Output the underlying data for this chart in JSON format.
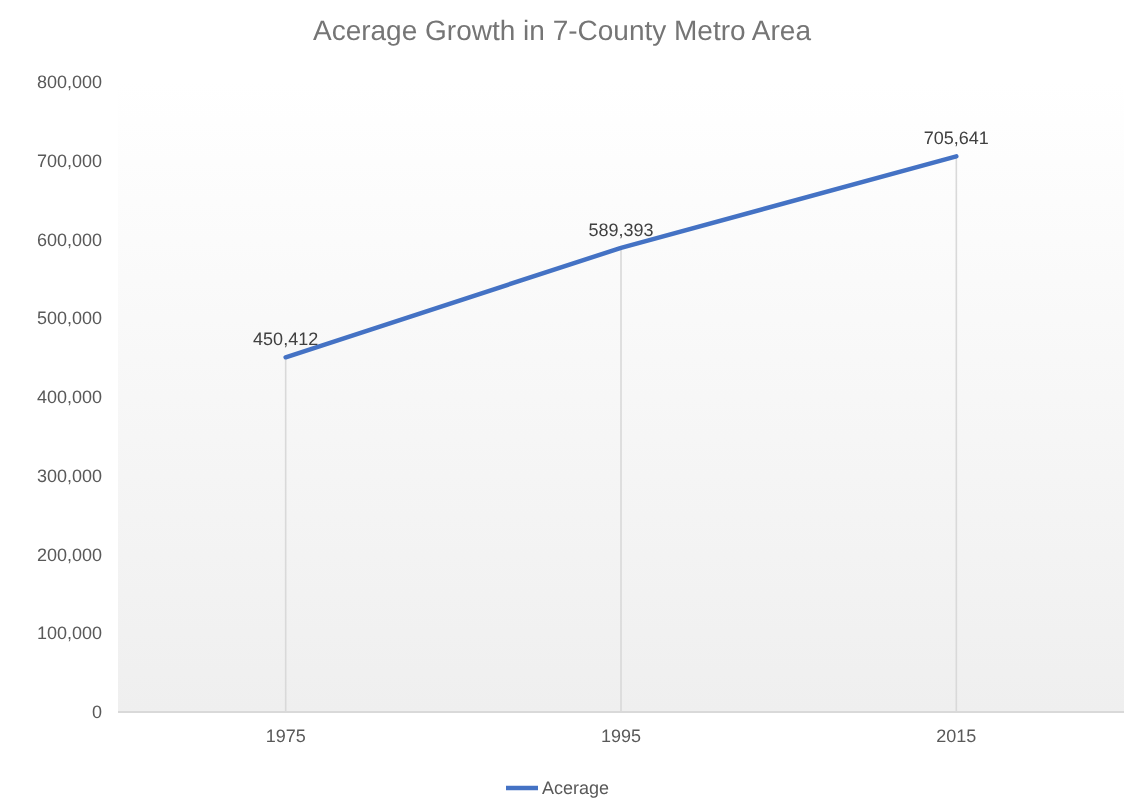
{
  "chart_data": {
    "type": "line",
    "title": "Acerage Growth in 7-County Metro Area",
    "categories": [
      "1975",
      "1995",
      "2015"
    ],
    "series": [
      {
        "name": "Acerage",
        "color": "#4472c4",
        "values": [
          450412,
          589393,
          705641
        ],
        "value_labels": [
          "450,412",
          "589,393",
          "705,641"
        ]
      }
    ],
    "ylim": [
      0,
      800000
    ],
    "yticks": [
      {
        "value": 0,
        "label": "0"
      },
      {
        "value": 100000,
        "label": "100,000"
      },
      {
        "value": 200000,
        "label": "200,000"
      },
      {
        "value": 300000,
        "label": "300,000"
      },
      {
        "value": 400000,
        "label": "400,000"
      },
      {
        "value": 500000,
        "label": "500,000"
      },
      {
        "value": 600000,
        "label": "600,000"
      },
      {
        "value": 700000,
        "label": "700,000"
      },
      {
        "value": 800000,
        "label": "800,000"
      }
    ],
    "grid": "x",
    "legend": "bottom",
    "marker": "none",
    "line_style": "solid"
  }
}
